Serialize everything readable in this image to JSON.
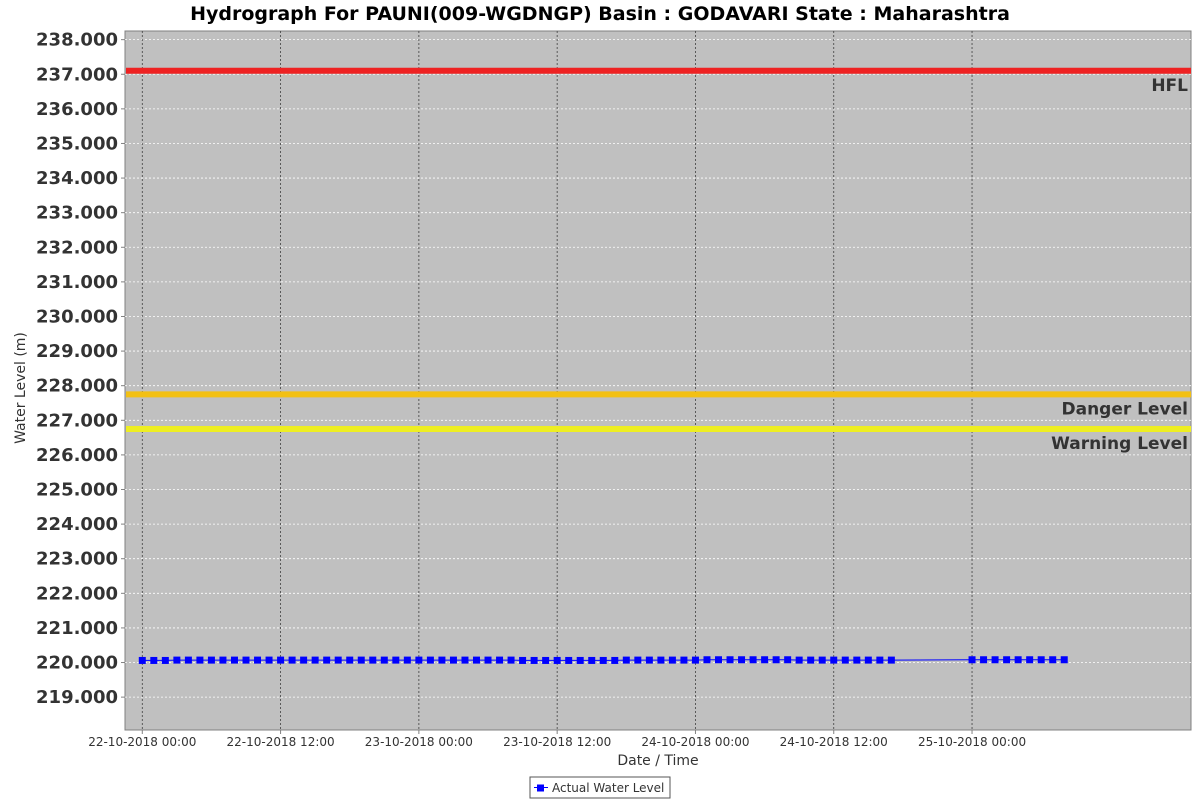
{
  "chart_data": {
    "type": "line",
    "title": "Hydrograph For PAUNI(009-WGDNGP) Basin : GODAVARI State : Maharashtra",
    "xlabel": "Date / Time",
    "ylabel": "Water Level (m)",
    "ylim": [
      218.05,
      238.25
    ],
    "y_ticks": [
      "219.000",
      "220.000",
      "221.000",
      "222.000",
      "223.000",
      "224.000",
      "225.000",
      "226.000",
      "227.000",
      "228.000",
      "229.000",
      "230.000",
      "231.000",
      "232.000",
      "233.000",
      "234.000",
      "235.000",
      "236.000",
      "237.000",
      "238.000"
    ],
    "x_range": [
      "2018-10-21 22:30",
      "2018-10-25 19:00"
    ],
    "x_ticks": [
      {
        "label": "22-10-2018 00:00",
        "t": "2018-10-22 00:00"
      },
      {
        "label": "22-10-2018 12:00",
        "t": "2018-10-22 12:00"
      },
      {
        "label": "23-10-2018 00:00",
        "t": "2018-10-23 00:00"
      },
      {
        "label": "23-10-2018 12:00",
        "t": "2018-10-23 12:00"
      },
      {
        "label": "24-10-2018 00:00",
        "t": "2018-10-24 00:00"
      },
      {
        "label": "24-10-2018 12:00",
        "t": "2018-10-24 12:00"
      },
      {
        "label": "25-10-2018 00:00",
        "t": "2018-10-25 00:00"
      }
    ],
    "grid": true,
    "reference_lines": [
      {
        "name": "HFL",
        "value": 237.1,
        "color": "#ee2222"
      },
      {
        "name": "Danger Level",
        "value": 227.75,
        "color": "#f2c014"
      },
      {
        "name": "Warning Level",
        "value": 226.75,
        "color": "#eeee22"
      }
    ],
    "legend_position": "bottom-center",
    "series": [
      {
        "name": "Actual Water Level",
        "color": "#0000ff",
        "points": [
          {
            "t": "2018-10-22 00:00",
            "y": 220.06
          },
          {
            "t": "2018-10-22 01:00",
            "y": 220.06
          },
          {
            "t": "2018-10-22 02:00",
            "y": 220.06
          },
          {
            "t": "2018-10-22 03:00",
            "y": 220.07
          },
          {
            "t": "2018-10-22 04:00",
            "y": 220.07
          },
          {
            "t": "2018-10-22 05:00",
            "y": 220.07
          },
          {
            "t": "2018-10-22 06:00",
            "y": 220.07
          },
          {
            "t": "2018-10-22 07:00",
            "y": 220.07
          },
          {
            "t": "2018-10-22 08:00",
            "y": 220.07
          },
          {
            "t": "2018-10-22 09:00",
            "y": 220.07
          },
          {
            "t": "2018-10-22 10:00",
            "y": 220.07
          },
          {
            "t": "2018-10-22 11:00",
            "y": 220.07
          },
          {
            "t": "2018-10-22 12:00",
            "y": 220.07
          },
          {
            "t": "2018-10-22 13:00",
            "y": 220.07
          },
          {
            "t": "2018-10-22 14:00",
            "y": 220.07
          },
          {
            "t": "2018-10-22 15:00",
            "y": 220.07
          },
          {
            "t": "2018-10-22 16:00",
            "y": 220.07
          },
          {
            "t": "2018-10-22 17:00",
            "y": 220.07
          },
          {
            "t": "2018-10-22 18:00",
            "y": 220.07
          },
          {
            "t": "2018-10-22 19:00",
            "y": 220.07
          },
          {
            "t": "2018-10-22 20:00",
            "y": 220.07
          },
          {
            "t": "2018-10-22 21:00",
            "y": 220.07
          },
          {
            "t": "2018-10-22 22:00",
            "y": 220.07
          },
          {
            "t": "2018-10-22 23:00",
            "y": 220.07
          },
          {
            "t": "2018-10-23 00:00",
            "y": 220.07
          },
          {
            "t": "2018-10-23 01:00",
            "y": 220.07
          },
          {
            "t": "2018-10-23 02:00",
            "y": 220.07
          },
          {
            "t": "2018-10-23 03:00",
            "y": 220.07
          },
          {
            "t": "2018-10-23 04:00",
            "y": 220.07
          },
          {
            "t": "2018-10-23 05:00",
            "y": 220.07
          },
          {
            "t": "2018-10-23 06:00",
            "y": 220.07
          },
          {
            "t": "2018-10-23 07:00",
            "y": 220.07
          },
          {
            "t": "2018-10-23 08:00",
            "y": 220.07
          },
          {
            "t": "2018-10-23 09:00",
            "y": 220.06
          },
          {
            "t": "2018-10-23 10:00",
            "y": 220.06
          },
          {
            "t": "2018-10-23 11:00",
            "y": 220.06
          },
          {
            "t": "2018-10-23 12:00",
            "y": 220.06
          },
          {
            "t": "2018-10-23 13:00",
            "y": 220.06
          },
          {
            "t": "2018-10-23 14:00",
            "y": 220.06
          },
          {
            "t": "2018-10-23 15:00",
            "y": 220.06
          },
          {
            "t": "2018-10-23 16:00",
            "y": 220.06
          },
          {
            "t": "2018-10-23 17:00",
            "y": 220.06
          },
          {
            "t": "2018-10-23 18:00",
            "y": 220.07
          },
          {
            "t": "2018-10-23 19:00",
            "y": 220.07
          },
          {
            "t": "2018-10-23 20:00",
            "y": 220.07
          },
          {
            "t": "2018-10-23 21:00",
            "y": 220.07
          },
          {
            "t": "2018-10-23 22:00",
            "y": 220.07
          },
          {
            "t": "2018-10-23 23:00",
            "y": 220.07
          },
          {
            "t": "2018-10-24 00:00",
            "y": 220.07
          },
          {
            "t": "2018-10-24 01:00",
            "y": 220.08
          },
          {
            "t": "2018-10-24 02:00",
            "y": 220.08
          },
          {
            "t": "2018-10-24 03:00",
            "y": 220.08
          },
          {
            "t": "2018-10-24 04:00",
            "y": 220.08
          },
          {
            "t": "2018-10-24 05:00",
            "y": 220.08
          },
          {
            "t": "2018-10-24 06:00",
            "y": 220.08
          },
          {
            "t": "2018-10-24 07:00",
            "y": 220.08
          },
          {
            "t": "2018-10-24 08:00",
            "y": 220.08
          },
          {
            "t": "2018-10-24 09:00",
            "y": 220.07
          },
          {
            "t": "2018-10-24 10:00",
            "y": 220.07
          },
          {
            "t": "2018-10-24 11:00",
            "y": 220.07
          },
          {
            "t": "2018-10-24 12:00",
            "y": 220.07
          },
          {
            "t": "2018-10-24 13:00",
            "y": 220.07
          },
          {
            "t": "2018-10-24 14:00",
            "y": 220.07
          },
          {
            "t": "2018-10-24 15:00",
            "y": 220.07
          },
          {
            "t": "2018-10-24 16:00",
            "y": 220.07
          },
          {
            "t": "2018-10-24 17:00",
            "y": 220.07
          },
          {
            "t": "2018-10-25 00:00",
            "y": 220.08
          },
          {
            "t": "2018-10-25 01:00",
            "y": 220.08
          },
          {
            "t": "2018-10-25 02:00",
            "y": 220.08
          },
          {
            "t": "2018-10-25 03:00",
            "y": 220.08
          },
          {
            "t": "2018-10-25 04:00",
            "y": 220.08
          },
          {
            "t": "2018-10-25 05:00",
            "y": 220.08
          },
          {
            "t": "2018-10-25 06:00",
            "y": 220.08
          },
          {
            "t": "2018-10-25 07:00",
            "y": 220.08
          },
          {
            "t": "2018-10-25 08:00",
            "y": 220.08
          }
        ]
      }
    ]
  }
}
